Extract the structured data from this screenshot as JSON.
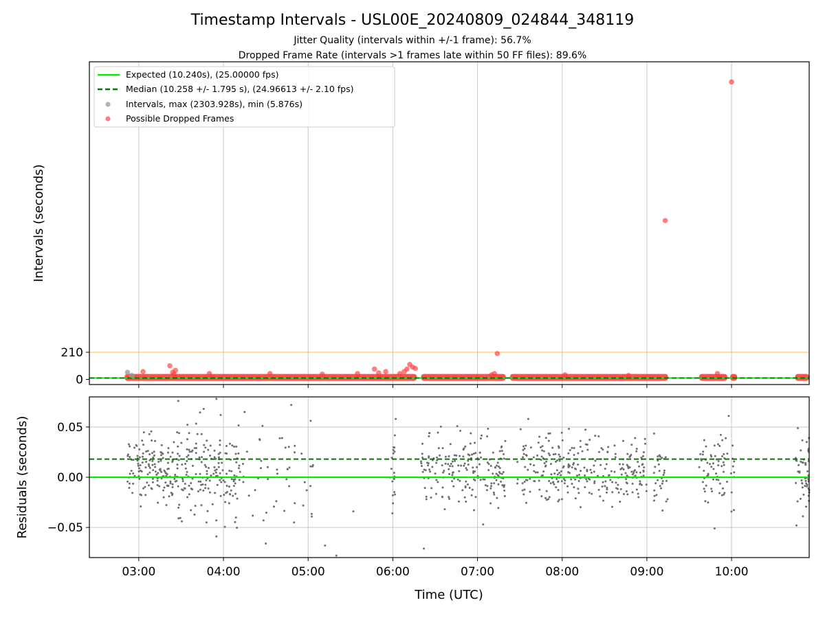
{
  "chart_data": [
    {
      "type": "scatter",
      "title": "Timestamp Intervals - USL00E_20240809_024844_348119",
      "subtitle_lines": [
        "Jitter Quality (intervals within +/-1 frame): 56.7%",
        "Dropped Frame Rate (intervals >1 frames late within 50 FF files): 89.6%"
      ],
      "ylabel": "Intervals (seconds)",
      "xlim": [
        "02:25",
        "10:55"
      ],
      "ylim": [
        -40,
        2460
      ],
      "y_ticks": [
        0,
        210
      ],
      "y_tick_labels": [
        "0",
        "210"
      ],
      "threshold_line": {
        "y": 210,
        "color": "#ffa500"
      },
      "grid": "x only",
      "legend_position": "upper-left",
      "legend": [
        {
          "label": "Expected (10.240s), (25.00000 fps)",
          "kind": "line-solid",
          "color": "#00ee00"
        },
        {
          "label": "Median (10.258 +/- 1.795 s), (24.96613 +/- 2.10 fps)",
          "kind": "line-dashed",
          "color": "#007700"
        },
        {
          "label": "Intervals, max (2303.928s), min (5.876s)",
          "kind": "marker",
          "color": "#9a9a9a"
        },
        {
          "label": "Possible Dropped Frames",
          "kind": "marker",
          "color": "#ff3b3b"
        }
      ],
      "expected_interval": 10.24,
      "median_interval": 10.258,
      "continuous_bands": [
        {
          "start": "02:50",
          "end": "06:17",
          "y": 10
        },
        {
          "start": "06:20",
          "end": "07:20",
          "y": 10
        },
        {
          "start": "07:23",
          "end": "09:15",
          "y": 10
        },
        {
          "start": "09:37",
          "end": "09:57",
          "y": 10
        },
        {
          "start": "09:59",
          "end": "10:04",
          "y": 10
        },
        {
          "start": "10:45",
          "end": "10:55",
          "y": 10
        }
      ],
      "highlighted_points": [
        {
          "x": "02:52",
          "y": 55,
          "series": "Intervals"
        },
        {
          "x": "02:55",
          "y": 30,
          "series": "Intervals"
        },
        {
          "x": "03:03",
          "y": 60,
          "series": "Possible Dropped Frames"
        },
        {
          "x": "03:22",
          "y": 105,
          "series": "Possible Dropped Frames"
        },
        {
          "x": "03:24",
          "y": 55,
          "series": "Possible Dropped Frames"
        },
        {
          "x": "03:26",
          "y": 70,
          "series": "Possible Dropped Frames"
        },
        {
          "x": "03:25",
          "y": 40,
          "series": "Possible Dropped Frames"
        },
        {
          "x": "03:50",
          "y": 45,
          "series": "Possible Dropped Frames"
        },
        {
          "x": "04:33",
          "y": 45,
          "series": "Possible Dropped Frames"
        },
        {
          "x": "05:10",
          "y": 40,
          "series": "Possible Dropped Frames"
        },
        {
          "x": "05:35",
          "y": 45,
          "series": "Possible Dropped Frames"
        },
        {
          "x": "05:47",
          "y": 80,
          "series": "Possible Dropped Frames"
        },
        {
          "x": "05:50",
          "y": 50,
          "series": "Possible Dropped Frames"
        },
        {
          "x": "05:55",
          "y": 60,
          "series": "Possible Dropped Frames"
        },
        {
          "x": "06:05",
          "y": 45,
          "series": "Possible Dropped Frames"
        },
        {
          "x": "06:08",
          "y": 60,
          "series": "Possible Dropped Frames"
        },
        {
          "x": "06:10",
          "y": 80,
          "series": "Possible Dropped Frames"
        },
        {
          "x": "06:12",
          "y": 115,
          "series": "Possible Dropped Frames"
        },
        {
          "x": "06:14",
          "y": 95,
          "series": "Possible Dropped Frames"
        },
        {
          "x": "06:16",
          "y": 85,
          "series": "Possible Dropped Frames"
        },
        {
          "x": "07:10",
          "y": 35,
          "series": "Possible Dropped Frames"
        },
        {
          "x": "07:12",
          "y": 45,
          "series": "Possible Dropped Frames"
        },
        {
          "x": "07:14",
          "y": 200,
          "series": "Possible Dropped Frames"
        },
        {
          "x": "08:02",
          "y": 35,
          "series": "Possible Dropped Frames"
        },
        {
          "x": "08:47",
          "y": 30,
          "series": "Possible Dropped Frames"
        },
        {
          "x": "09:13",
          "y": 1230,
          "series": "Possible Dropped Frames"
        },
        {
          "x": "09:50",
          "y": 45,
          "series": "Possible Dropped Frames"
        },
        {
          "x": "10:00",
          "y": 2304,
          "series": "Possible Dropped Frames"
        }
      ]
    },
    {
      "type": "scatter",
      "ylabel": "Residuals (seconds)",
      "xlabel": "Time (UTC)",
      "xlim": [
        "02:25",
        "10:55"
      ],
      "ylim": [
        -0.08,
        0.08
      ],
      "y_ticks": [
        -0.05,
        0.0,
        0.05
      ],
      "y_tick_labels": [
        "−0.05",
        "0.00",
        "0.05"
      ],
      "x_ticks": [
        "03:00",
        "04:00",
        "05:00",
        "06:00",
        "07:00",
        "08:00",
        "09:00",
        "10:00"
      ],
      "grid": "both",
      "expected_residual": 0.0,
      "median_residual": 0.018,
      "point_color": "#6e6e6e",
      "residual_segments": [
        {
          "start": "02:52",
          "end": "03:28",
          "count": 150,
          "mean": 0.008,
          "sd": 0.016
        },
        {
          "start": "03:28",
          "end": "04:12",
          "count": 170,
          "mean": 0.006,
          "sd": 0.022
        },
        {
          "start": "04:12",
          "end": "05:05",
          "count": 45,
          "mean": 0.005,
          "sd": 0.028
        },
        {
          "start": "05:58",
          "end": "06:02",
          "count": 18,
          "mean": 0.008,
          "sd": 0.022
        },
        {
          "start": "06:20",
          "end": "07:20",
          "count": 190,
          "mean": 0.006,
          "sd": 0.018
        },
        {
          "start": "07:28",
          "end": "09:00",
          "count": 280,
          "mean": 0.008,
          "sd": 0.016
        },
        {
          "start": "09:05",
          "end": "09:15",
          "count": 30,
          "mean": 0.007,
          "sd": 0.02
        },
        {
          "start": "09:37",
          "end": "09:57",
          "count": 60,
          "mean": 0.008,
          "sd": 0.02
        },
        {
          "start": "09:59",
          "end": "10:02",
          "count": 10,
          "mean": 0.01,
          "sd": 0.025
        },
        {
          "start": "10:45",
          "end": "10:55",
          "count": 50,
          "mean": 0.006,
          "sd": 0.022
        }
      ],
      "outliers": [
        {
          "x": "03:28",
          "y": 0.076
        },
        {
          "x": "03:46",
          "y": 0.068
        },
        {
          "x": "03:55",
          "y": 0.078
        },
        {
          "x": "03:58",
          "y": 0.062
        },
        {
          "x": "04:15",
          "y": 0.065
        },
        {
          "x": "04:48",
          "y": 0.072
        },
        {
          "x": "04:50",
          "y": -0.045
        },
        {
          "x": "04:30",
          "y": -0.066
        },
        {
          "x": "05:12",
          "y": -0.068
        },
        {
          "x": "05:20",
          "y": -0.078
        },
        {
          "x": "05:32",
          "y": -0.034
        },
        {
          "x": "06:02",
          "y": 0.058
        },
        {
          "x": "06:22",
          "y": -0.071
        },
        {
          "x": "07:04",
          "y": -0.047
        },
        {
          "x": "07:36",
          "y": 0.058
        },
        {
          "x": "09:48",
          "y": -0.051
        },
        {
          "x": "09:58",
          "y": 0.061
        },
        {
          "x": "10:46",
          "y": -0.048
        },
        {
          "x": "03:48",
          "y": -0.045
        },
        {
          "x": "03:55",
          "y": -0.059
        },
        {
          "x": "06:00",
          "y": -0.018
        }
      ]
    }
  ]
}
